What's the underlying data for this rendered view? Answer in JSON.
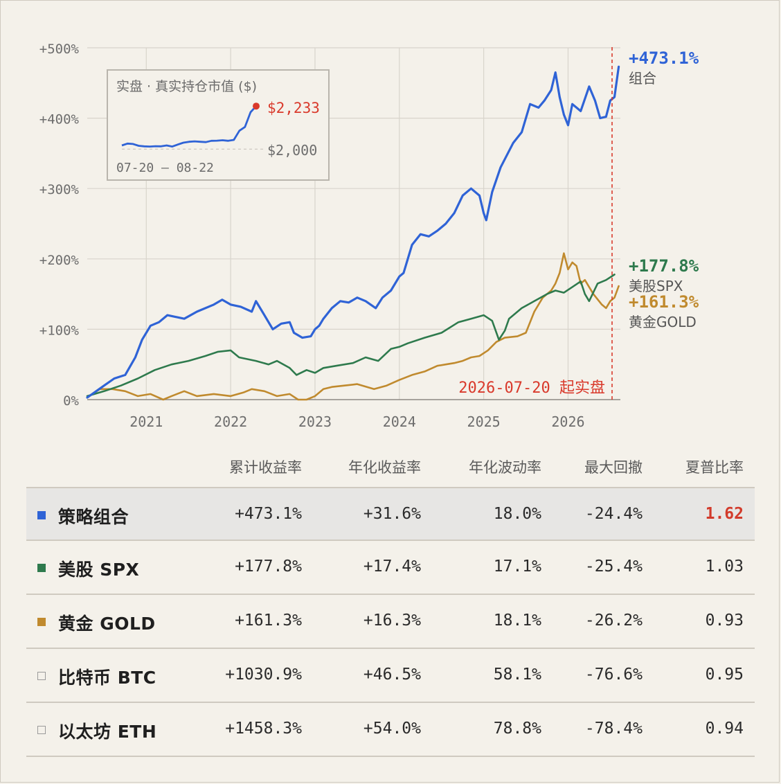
{
  "chart_data": {
    "type": "line",
    "y_ticks": [
      "+500%",
      "+400%",
      "+300%",
      "+200%",
      "+100%",
      "0%"
    ],
    "x_ticks": [
      "2021",
      "2022",
      "2023",
      "2024",
      "2025",
      "2026"
    ],
    "ylim": [
      0,
      500
    ],
    "grid": true,
    "live_start_label": "2026-07-20 起实盘",
    "series": [
      {
        "name": "组合",
        "color": "#2f63d6",
        "end_label": "+473.1%",
        "points": [
          [
            2020.3,
            3
          ],
          [
            2020.5,
            20
          ],
          [
            2020.62,
            30
          ],
          [
            2020.75,
            35
          ],
          [
            2020.87,
            60
          ],
          [
            2020.95,
            85
          ],
          [
            2021.05,
            105
          ],
          [
            2021.15,
            110
          ],
          [
            2021.25,
            120
          ],
          [
            2021.45,
            115
          ],
          [
            2021.6,
            125
          ],
          [
            2021.8,
            135
          ],
          [
            2021.9,
            142
          ],
          [
            2022.0,
            135
          ],
          [
            2022.12,
            132
          ],
          [
            2022.25,
            125
          ],
          [
            2022.3,
            140
          ],
          [
            2022.4,
            120
          ],
          [
            2022.5,
            100
          ],
          [
            2022.6,
            108
          ],
          [
            2022.7,
            110
          ],
          [
            2022.75,
            95
          ],
          [
            2022.85,
            88
          ],
          [
            2022.95,
            90
          ],
          [
            2023.0,
            100
          ],
          [
            2023.05,
            105
          ],
          [
            2023.1,
            115
          ],
          [
            2023.2,
            130
          ],
          [
            2023.3,
            140
          ],
          [
            2023.4,
            138
          ],
          [
            2023.5,
            145
          ],
          [
            2023.6,
            140
          ],
          [
            2023.72,
            130
          ],
          [
            2023.8,
            145
          ],
          [
            2023.9,
            155
          ],
          [
            2024.0,
            175
          ],
          [
            2024.05,
            180
          ],
          [
            2024.15,
            220
          ],
          [
            2024.25,
            235
          ],
          [
            2024.35,
            232
          ],
          [
            2024.45,
            240
          ],
          [
            2024.55,
            250
          ],
          [
            2024.65,
            265
          ],
          [
            2024.75,
            290
          ],
          [
            2024.85,
            300
          ],
          [
            2024.95,
            290
          ],
          [
            2025.0,
            265
          ],
          [
            2025.03,
            255
          ],
          [
            2025.1,
            295
          ],
          [
            2025.2,
            330
          ],
          [
            2025.35,
            365
          ],
          [
            2025.45,
            380
          ],
          [
            2025.55,
            420
          ],
          [
            2025.65,
            415
          ],
          [
            2025.72,
            425
          ],
          [
            2025.8,
            440
          ],
          [
            2025.85,
            465
          ],
          [
            2025.9,
            430
          ],
          [
            2025.95,
            405
          ],
          [
            2026.0,
            390
          ],
          [
            2026.05,
            420
          ],
          [
            2026.15,
            410
          ],
          [
            2026.25,
            445
          ],
          [
            2026.32,
            425
          ],
          [
            2026.38,
            400
          ],
          [
            2026.45,
            402
          ],
          [
            2026.5,
            425
          ],
          [
            2026.55,
            430
          ],
          [
            2026.6,
            473.1
          ]
        ]
      },
      {
        "name": "美股SPX",
        "color": "#2e7a4d",
        "end_label": "+177.8%",
        "points": [
          [
            2020.3,
            5
          ],
          [
            2020.5,
            12
          ],
          [
            2020.7,
            20
          ],
          [
            2020.9,
            30
          ],
          [
            2021.1,
            42
          ],
          [
            2021.3,
            50
          ],
          [
            2021.5,
            55
          ],
          [
            2021.7,
            62
          ],
          [
            2021.85,
            68
          ],
          [
            2022.0,
            70
          ],
          [
            2022.1,
            60
          ],
          [
            2022.3,
            55
          ],
          [
            2022.45,
            50
          ],
          [
            2022.55,
            55
          ],
          [
            2022.7,
            45
          ],
          [
            2022.78,
            35
          ],
          [
            2022.9,
            42
          ],
          [
            2023.0,
            38
          ],
          [
            2023.1,
            45
          ],
          [
            2023.25,
            48
          ],
          [
            2023.45,
            52
          ],
          [
            2023.6,
            60
          ],
          [
            2023.75,
            55
          ],
          [
            2023.9,
            72
          ],
          [
            2024.0,
            75
          ],
          [
            2024.1,
            80
          ],
          [
            2024.3,
            88
          ],
          [
            2024.5,
            95
          ],
          [
            2024.7,
            110
          ],
          [
            2024.85,
            115
          ],
          [
            2025.0,
            120
          ],
          [
            2025.1,
            112
          ],
          [
            2025.18,
            85
          ],
          [
            2025.25,
            98
          ],
          [
            2025.3,
            115
          ],
          [
            2025.45,
            130
          ],
          [
            2025.6,
            140
          ],
          [
            2025.75,
            150
          ],
          [
            2025.85,
            155
          ],
          [
            2025.95,
            152
          ],
          [
            2026.05,
            160
          ],
          [
            2026.15,
            168
          ],
          [
            2026.2,
            150
          ],
          [
            2026.25,
            140
          ],
          [
            2026.35,
            165
          ],
          [
            2026.45,
            170
          ],
          [
            2026.55,
            177.8
          ]
        ]
      },
      {
        "name": "黄金GOLD",
        "color": "#c08a2e",
        "end_label": "+161.3%",
        "points": [
          [
            2020.3,
            3
          ],
          [
            2020.45,
            15
          ],
          [
            2020.6,
            15
          ],
          [
            2020.75,
            12
          ],
          [
            2020.9,
            5
          ],
          [
            2021.05,
            8
          ],
          [
            2021.2,
            0
          ],
          [
            2021.3,
            5
          ],
          [
            2021.45,
            12
          ],
          [
            2021.6,
            5
          ],
          [
            2021.8,
            8
          ],
          [
            2022.0,
            5
          ],
          [
            2022.15,
            10
          ],
          [
            2022.25,
            15
          ],
          [
            2022.4,
            12
          ],
          [
            2022.55,
            5
          ],
          [
            2022.7,
            8
          ],
          [
            2022.8,
            0
          ],
          [
            2022.9,
            0
          ],
          [
            2023.0,
            5
          ],
          [
            2023.1,
            15
          ],
          [
            2023.2,
            18
          ],
          [
            2023.35,
            20
          ],
          [
            2023.5,
            22
          ],
          [
            2023.7,
            15
          ],
          [
            2023.85,
            20
          ],
          [
            2024.0,
            28
          ],
          [
            2024.15,
            35
          ],
          [
            2024.3,
            40
          ],
          [
            2024.45,
            48
          ],
          [
            2024.55,
            50
          ],
          [
            2024.65,
            52
          ],
          [
            2024.75,
            55
          ],
          [
            2024.85,
            60
          ],
          [
            2024.95,
            62
          ],
          [
            2025.05,
            70
          ],
          [
            2025.15,
            82
          ],
          [
            2025.25,
            88
          ],
          [
            2025.4,
            90
          ],
          [
            2025.5,
            95
          ],
          [
            2025.6,
            125
          ],
          [
            2025.7,
            145
          ],
          [
            2025.8,
            155
          ],
          [
            2025.85,
            165
          ],
          [
            2025.9,
            180
          ],
          [
            2025.95,
            208
          ],
          [
            2026.0,
            185
          ],
          [
            2026.05,
            195
          ],
          [
            2026.1,
            190
          ],
          [
            2026.15,
            165
          ],
          [
            2026.2,
            170
          ],
          [
            2026.3,
            150
          ],
          [
            2026.4,
            135
          ],
          [
            2026.45,
            130
          ],
          [
            2026.5,
            140
          ],
          [
            2026.55,
            145
          ],
          [
            2026.6,
            161.3
          ]
        ]
      }
    ],
    "inset": {
      "title": "实盘 · 真实持仓市值 ($)",
      "date_range": "07-20 — 08-22",
      "last_label": "$2,233",
      "base_label": "$2,000",
      "ylim": [
        1960,
        2260
      ],
      "base": 2000,
      "values": [
        2020,
        2030,
        2028,
        2018,
        2015,
        2014,
        2016,
        2015,
        2020,
        2014,
        2025,
        2035,
        2040,
        2042,
        2040,
        2038,
        2045,
        2046,
        2048,
        2045,
        2050,
        2100,
        2120,
        2200,
        2233
      ]
    }
  },
  "table": {
    "headers": [
      "累计收益率",
      "年化收益率",
      "年化波动率",
      "最大回撤",
      "夏普比率"
    ],
    "rows": [
      {
        "name": "策略组合",
        "color": "#2f63d6",
        "cum": "+473.1%",
        "ann": "+31.6%",
        "vol": "18.0%",
        "mdd": "-24.4%",
        "sharpe": "1.62"
      },
      {
        "name": "美股 SPX",
        "color": "#2e7a4d",
        "cum": "+177.8%",
        "ann": "+17.4%",
        "vol": "17.1%",
        "mdd": "-25.4%",
        "sharpe": "1.03"
      },
      {
        "name": "黄金 GOLD",
        "color": "#c08a2e",
        "cum": "+161.3%",
        "ann": "+16.3%",
        "vol": "18.1%",
        "mdd": "-26.2%",
        "sharpe": "0.93"
      },
      {
        "name": "比特币 BTC",
        "color": "",
        "cum": "+1030.9%",
        "ann": "+46.5%",
        "vol": "58.1%",
        "mdd": "-76.6%",
        "sharpe": "0.95"
      },
      {
        "name": "以太坊 ETH",
        "color": "",
        "cum": "+1458.3%",
        "ann": "+54.0%",
        "vol": "78.8%",
        "mdd": "-78.4%",
        "sharpe": "0.94"
      }
    ]
  }
}
